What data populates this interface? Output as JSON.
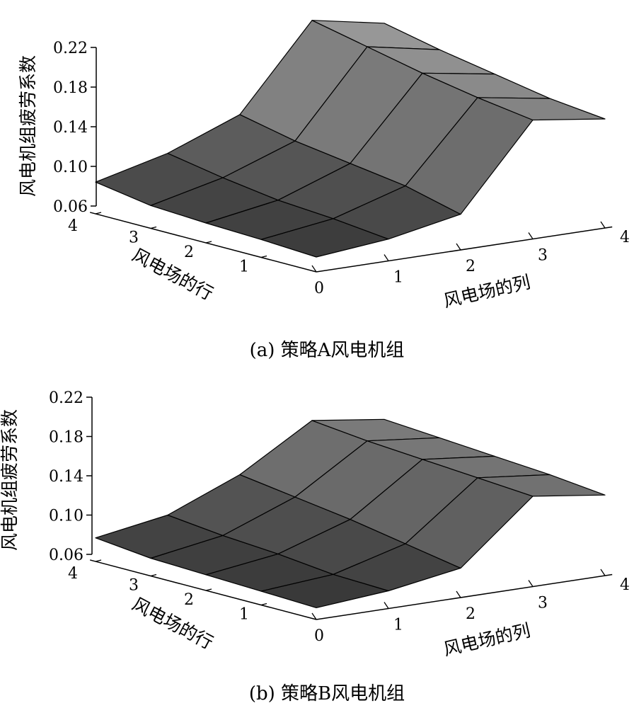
{
  "chart_data": [
    {
      "type": "surface3d",
      "caption": "(a)  策略A风电机组",
      "zlabel": "风电机组疲劳系数",
      "xlabel": "风电场的列",
      "ylabel": "风电场的行",
      "zlim": [
        0.06,
        0.22
      ],
      "z_ticks": [
        "0.22",
        "0.18",
        "0.14",
        "0.10",
        "0.06"
      ],
      "x_ticks": [
        "0",
        "1",
        "2",
        "3",
        "4"
      ],
      "y_ticks": [
        "0",
        "1",
        "2",
        "3",
        "4"
      ],
      "z": [
        [
          0.075,
          0.082,
          0.096,
          0.18,
          0.17
        ],
        [
          0.078,
          0.088,
          0.11,
          0.188,
          0.176
        ],
        [
          0.08,
          0.092,
          0.118,
          0.198,
          0.186
        ],
        [
          0.083,
          0.1,
          0.126,
          0.21,
          0.196
        ],
        [
          0.092,
          0.11,
          0.138,
          0.222,
          0.208
        ]
      ]
    },
    {
      "type": "surface3d",
      "caption": "(b)  策略B风电机组",
      "zlabel": "风电机组疲劳系数",
      "xlabel": "风电场的列",
      "ylabel": "风电场的行",
      "zlim": [
        0.06,
        0.22
      ],
      "z_ticks": [
        "0.22",
        "0.18",
        "0.14",
        "0.10",
        "0.06"
      ],
      "x_ticks": [
        "0",
        "1",
        "2",
        "3",
        "4"
      ],
      "y_ticks": [
        "0",
        "1",
        "2",
        "3",
        "4"
      ],
      "z": [
        [
          0.072,
          0.078,
          0.09,
          0.152,
          0.142
        ],
        [
          0.074,
          0.08,
          0.1,
          0.156,
          0.148
        ],
        [
          0.076,
          0.086,
          0.11,
          0.16,
          0.152
        ],
        [
          0.078,
          0.09,
          0.118,
          0.164,
          0.156
        ],
        [
          0.084,
          0.096,
          0.126,
          0.17,
          0.16
        ]
      ]
    }
  ]
}
